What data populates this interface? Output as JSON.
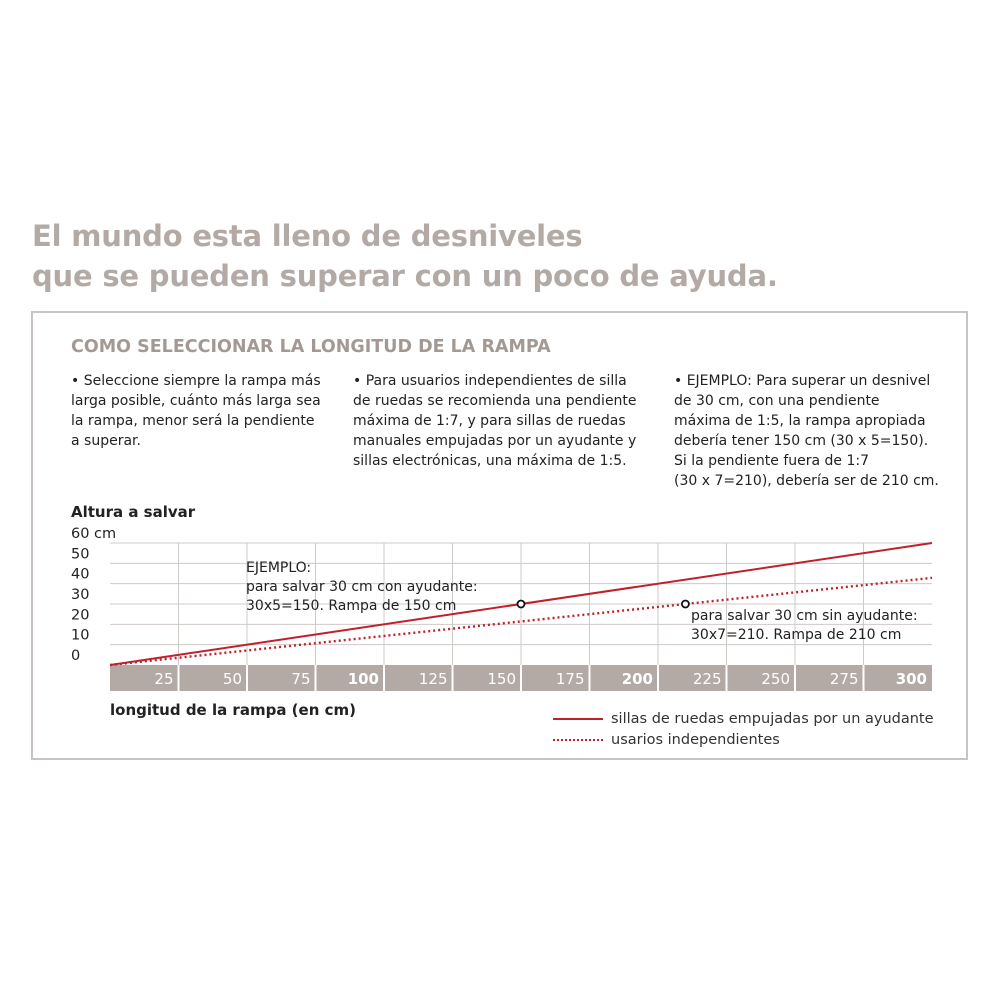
{
  "headline": {
    "line1": "El mundo esta lleno de desniveles",
    "line2": "que se pueden superar con un poco de ayuda."
  },
  "section_title": "COMO SELECCIONAR LA LONGITUD DE LA RAMPA",
  "columns": [
    {
      "lines": [
        "• Seleccione siempre la rampa más",
        "larga posible, cuánto más larga sea",
        "la rampa, menor será la pendiente",
        "a superar."
      ]
    },
    {
      "lines": [
        "• Para usuarios independientes de silla",
        "de ruedas se recomienda una pendiente",
        "máxima de 1:7, y para sillas de ruedas",
        "manuales empujadas por un ayudante y",
        "sillas electrónicas, una máxima de 1:5."
      ]
    },
    {
      "lines": [
        "• EJEMPLO: Para superar un desnivel",
        "de 30 cm, con una pendiente",
        "máxima de 1:5, la rampa apropiada",
        "debería tener 150 cm (30 x 5=150).",
        "Si la pendiente fuera de 1:7",
        "(30 x 7=210), debería ser de 210 cm."
      ]
    }
  ],
  "chart_data": {
    "type": "line",
    "ylabel": "Altura a salvar",
    "xlabel": "longitud de la rampa (en cm)",
    "y_ticks": [
      "0",
      "10",
      "20",
      "30",
      "40",
      "50",
      "60 cm"
    ],
    "x_ticks": [
      "25",
      "50",
      "75",
      "100",
      "125",
      "150",
      "175",
      "200",
      "225",
      "250",
      "275",
      "300"
    ],
    "x_ticks_bold": [
      "100",
      "200",
      "300"
    ],
    "xlim": [
      0,
      300
    ],
    "ylim": [
      0,
      60
    ],
    "grid": true,
    "legend_position": "bottom-right",
    "series": [
      {
        "name": "sillas de ruedas empujadas por un ayudante",
        "style": "solid",
        "color": "#c0202a",
        "x": [
          0,
          300
        ],
        "y": [
          0,
          60
        ]
      },
      {
        "name": "usarios independientes",
        "style": "dotted",
        "color": "#c0202a",
        "x": [
          0,
          300
        ],
        "y": [
          0,
          42.86
        ]
      }
    ],
    "annotations": [
      {
        "lines": [
          "EJEMPLO:",
          "para salvar 30 cm con ayudante:",
          "30x5=150. Rampa de 150 cm"
        ],
        "x": 150,
        "y": 30
      },
      {
        "lines": [
          "para salvar 30 cm sin ayudante:",
          "30x7=210. Rampa de 210 cm"
        ],
        "x": 210,
        "y": 30
      }
    ]
  },
  "legend": {
    "solid_label": "sillas de ruedas empujadas por un ayudante",
    "dotted_label": "usarios independientes"
  },
  "colors": {
    "accent": "#c0202a",
    "headline": "#b3aaa5",
    "axis_band": "#b3aaa5",
    "grid": "#cfcac7"
  }
}
